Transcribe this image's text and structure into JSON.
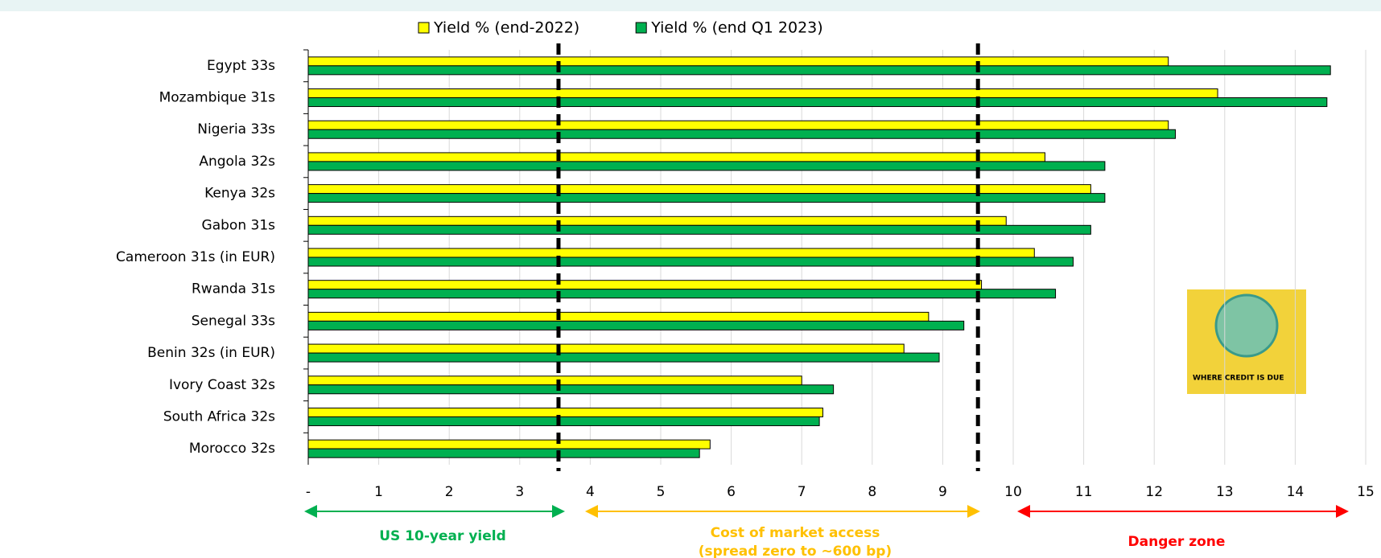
{
  "chart_data": {
    "type": "bar",
    "orientation": "horizontal",
    "categories": [
      "Egypt 33s",
      "Mozambique 31s",
      "Nigeria 33s",
      "Angola 32s",
      "Kenya 32s",
      "Gabon 31s",
      "Cameroon 31s (in EUR)",
      "Rwanda 31s",
      "Senegal 33s",
      "Benin 32s (in EUR)",
      "Ivory Coast 32s",
      "South Africa 32s",
      "Morocco 32s"
    ],
    "series": [
      {
        "name": "Yield % (end-2022)",
        "color": "#ffff00",
        "values": [
          12.2,
          12.9,
          12.2,
          10.45,
          11.1,
          9.9,
          10.3,
          9.55,
          8.8,
          8.45,
          7.0,
          7.3,
          5.7
        ]
      },
      {
        "name": "Yield % (end Q1 2023)",
        "color": "#00b050",
        "values": [
          14.5,
          14.45,
          12.3,
          11.3,
          11.3,
          11.1,
          10.85,
          10.6,
          9.3,
          8.95,
          7.45,
          7.25,
          5.55
        ]
      }
    ],
    "xlim": [
      0,
      15
    ],
    "xticks": [
      {
        "value": 0,
        "label": "-"
      },
      1,
      2,
      3,
      4,
      5,
      6,
      7,
      8,
      9,
      10,
      11,
      12,
      13,
      14,
      15
    ],
    "grid": true,
    "legend": "top",
    "reference_lines": [
      3.55,
      9.5
    ],
    "annotations": [
      {
        "text": "US 10-year yield",
        "color": "#00b050"
      },
      {
        "text": "Cost of market access",
        "subtext": "(spread zero to ~600 bp)",
        "color": "#ffc000"
      },
      {
        "text": "Danger zone",
        "color": "#ff0000"
      }
    ],
    "book_cover": {
      "title": "WHERE CREDIT IS DUE"
    }
  }
}
